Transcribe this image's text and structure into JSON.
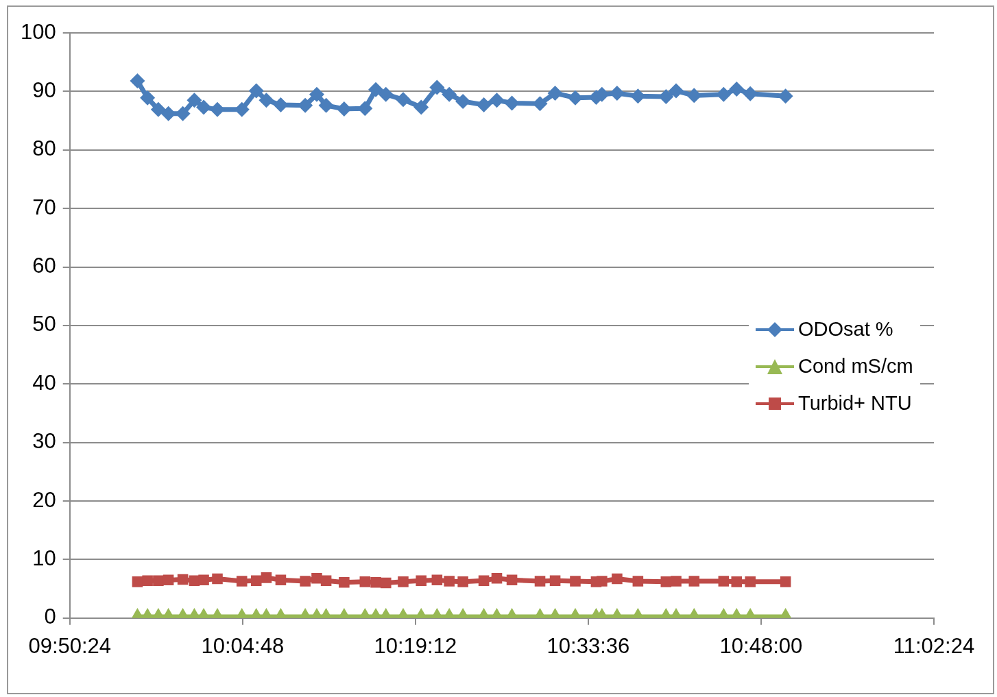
{
  "chart_data": {
    "type": "line",
    "x": [
      9.934,
      9.948,
      9.963,
      9.977,
      9.997,
      10.013,
      10.026,
      10.045,
      10.079,
      10.099,
      10.113,
      10.133,
      10.167,
      10.183,
      10.196,
      10.221,
      10.25,
      10.265,
      10.279,
      10.303,
      10.328,
      10.35,
      10.367,
      10.386,
      10.415,
      10.433,
      10.454,
      10.493,
      10.514,
      10.542,
      10.571,
      10.579,
      10.6,
      10.629,
      10.668,
      10.682,
      10.707,
      10.748,
      10.766,
      10.785,
      10.834
    ],
    "series": [
      {
        "name": "ODOsat %",
        "color": "#4a7ebb",
        "marker": "diamond",
        "values": [
          91.8,
          88.9,
          86.9,
          86.2,
          86.2,
          88.5,
          87.3,
          86.9,
          86.9,
          90.1,
          88.5,
          87.7,
          87.6,
          89.5,
          87.6,
          87.0,
          87.1,
          90.3,
          89.5,
          88.6,
          87.3,
          90.7,
          89.5,
          88.3,
          87.7,
          88.5,
          88.0,
          87.9,
          89.7,
          88.9,
          89.0,
          89.5,
          89.7,
          89.2,
          89.1,
          90.1,
          89.3,
          89.5,
          90.4,
          89.6,
          89.2
        ]
      },
      {
        "name": "Cond mS/cm",
        "color": "#98b954",
        "marker": "triangle",
        "values": [
          0.2,
          0.2,
          0.2,
          0.2,
          0.2,
          0.2,
          0.2,
          0.2,
          0.2,
          0.2,
          0.2,
          0.2,
          0.2,
          0.2,
          0.2,
          0.2,
          0.2,
          0.2,
          0.2,
          0.2,
          0.2,
          0.2,
          0.2,
          0.2,
          0.2,
          0.2,
          0.2,
          0.2,
          0.2,
          0.2,
          0.2,
          0.2,
          0.2,
          0.2,
          0.2,
          0.2,
          0.2,
          0.2,
          0.2,
          0.2,
          0.2
        ]
      },
      {
        "name": "Turbid+ NTU",
        "color": "#be4b48",
        "marker": "square",
        "values": [
          6.2,
          6.4,
          6.4,
          6.5,
          6.6,
          6.4,
          6.5,
          6.7,
          6.3,
          6.4,
          6.9,
          6.5,
          6.3,
          6.8,
          6.4,
          6.1,
          6.2,
          6.1,
          6.0,
          6.2,
          6.4,
          6.5,
          6.3,
          6.2,
          6.4,
          6.8,
          6.5,
          6.3,
          6.4,
          6.3,
          6.2,
          6.3,
          6.7,
          6.3,
          6.2,
          6.3,
          6.3,
          6.3,
          6.2,
          6.2,
          6.2
        ]
      }
    ],
    "xlim": [
      9.84,
      11.04
    ],
    "xticks": [
      {
        "value": 9.84,
        "label": "09:50:24"
      },
      {
        "value": 10.08,
        "label": "10:04:48"
      },
      {
        "value": 10.32,
        "label": "10:19:12"
      },
      {
        "value": 10.56,
        "label": "10:33:36"
      },
      {
        "value": 10.8,
        "label": "10:48:00"
      },
      {
        "value": 11.04,
        "label": "11:02:24"
      }
    ],
    "ylim": [
      0,
      100
    ],
    "yticks": [
      0,
      10,
      20,
      30,
      40,
      50,
      60,
      70,
      80,
      90,
      100
    ],
    "grid": "y",
    "legend": "right"
  }
}
